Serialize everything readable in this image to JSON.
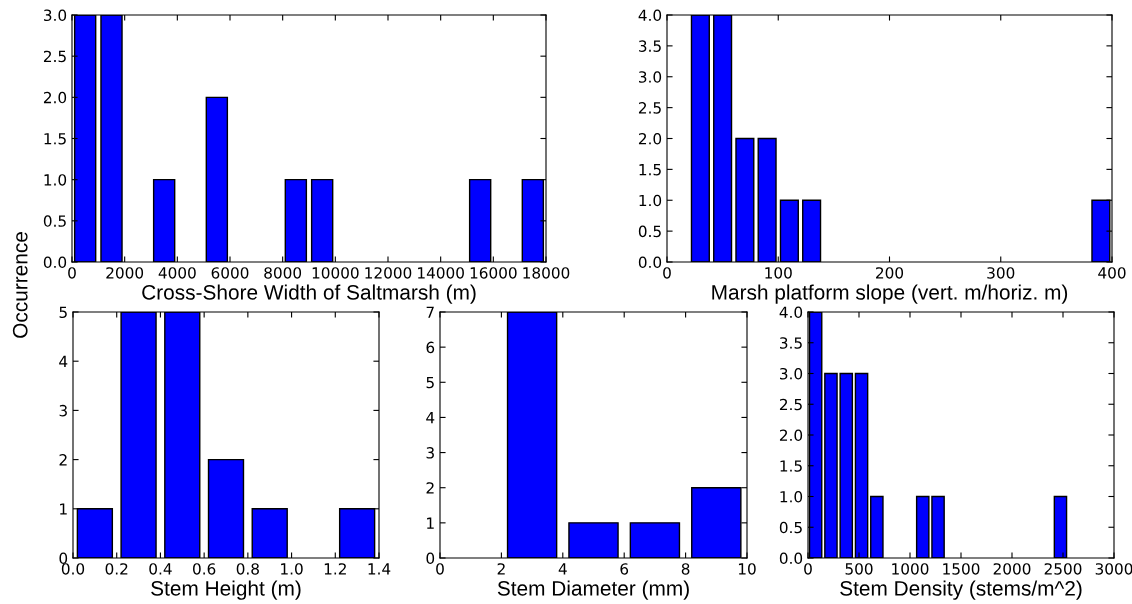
{
  "chart_data": [
    {
      "type": "histogram",
      "ylabel": "Occurrence",
      "xlabel": "Cross-Shore Width of Saltmarsh (m)",
      "color": "#0000ff",
      "bins": [
        0,
        1000,
        2000,
        3000,
        4000,
        5000,
        6000,
        7000,
        8000,
        9000,
        10000,
        11000,
        12000,
        13000,
        14000,
        15000,
        16000,
        17000,
        18000
      ],
      "values": [
        3,
        3,
        0,
        1,
        0,
        2,
        0,
        0,
        1,
        1,
        0,
        0,
        0,
        0,
        0,
        1,
        0,
        1
      ],
      "xlim": [
        0,
        18000
      ],
      "xticks": [
        0,
        2000,
        4000,
        6000,
        8000,
        10000,
        12000,
        14000,
        16000,
        18000
      ],
      "ylim": [
        0,
        3
      ],
      "yticks": [
        {
          "value": 0,
          "label": "0.0"
        },
        {
          "value": 0.5,
          "label": "0.5"
        },
        {
          "value": 1,
          "label": "1.0"
        },
        {
          "value": 1.5,
          "label": "1.5"
        },
        {
          "value": 2,
          "label": "2.0"
        },
        {
          "value": 2.5,
          "label": "2.5"
        },
        {
          "value": 3,
          "label": "3.0"
        }
      ]
    },
    {
      "type": "histogram",
      "xlabel": "Marsh platform slope (vert. m/horiz. m)",
      "color": "#0000ff",
      "bins": [
        0,
        20,
        40,
        60,
        80,
        100,
        120,
        140,
        160,
        180,
        200,
        220,
        240,
        260,
        280,
        300,
        320,
        340,
        360,
        380,
        400
      ],
      "values": [
        0,
        4,
        4,
        2,
        2,
        1,
        1,
        0,
        0,
        0,
        0,
        0,
        0,
        0,
        0,
        0,
        0,
        0,
        0,
        1
      ],
      "xlim": [
        0,
        400
      ],
      "xticks": [
        0,
        100,
        200,
        300,
        400
      ],
      "ylim": [
        0,
        4
      ],
      "yticks": [
        {
          "value": 0,
          "label": "0.0"
        },
        {
          "value": 0.5,
          "label": "0.5"
        },
        {
          "value": 1,
          "label": "1.0"
        },
        {
          "value": 1.5,
          "label": "1.5"
        },
        {
          "value": 2,
          "label": "2.0"
        },
        {
          "value": 2.5,
          "label": "2.5"
        },
        {
          "value": 3,
          "label": "3.0"
        },
        {
          "value": 3.5,
          "label": "3.5"
        },
        {
          "value": 4,
          "label": "4.0"
        }
      ]
    },
    {
      "type": "histogram",
      "xlabel": "Stem Height (m)",
      "color": "#0000ff",
      "bins": [
        0,
        0.2,
        0.4,
        0.6,
        0.8,
        1.0,
        1.2,
        1.4
      ],
      "values": [
        1,
        5,
        5,
        2,
        1,
        0,
        1
      ],
      "xlim": [
        0,
        1.4
      ],
      "xticks": [
        {
          "value": 0,
          "label": "0.0"
        },
        {
          "value": 0.2,
          "label": "0.2"
        },
        {
          "value": 0.4,
          "label": "0.4"
        },
        {
          "value": 0.6,
          "label": "0.6"
        },
        {
          "value": 0.8,
          "label": "0.8"
        },
        {
          "value": 1.0,
          "label": "1.0"
        },
        {
          "value": 1.2,
          "label": "1.2"
        },
        {
          "value": 1.4,
          "label": "1.4"
        }
      ],
      "ylim": [
        0,
        5
      ],
      "yticks": [
        0,
        1,
        2,
        3,
        4,
        5
      ]
    },
    {
      "type": "histogram",
      "xlabel": "Stem Diameter (mm)",
      "color": "#0000ff",
      "bins": [
        0,
        2,
        4,
        6,
        8,
        10
      ],
      "values": [
        0,
        7,
        1,
        1,
        2
      ],
      "xlim": [
        0,
        10
      ],
      "xticks": [
        0,
        2,
        4,
        6,
        8,
        10
      ],
      "ylim": [
        0,
        7
      ],
      "yticks": [
        0,
        1,
        2,
        3,
        4,
        5,
        6,
        7
      ]
    },
    {
      "type": "histogram",
      "xlabel": "Stem Density (stems/m^2)",
      "color": "#0000ff",
      "bins": [
        0,
        150,
        300,
        450,
        600,
        750,
        900,
        1050,
        1200,
        1350,
        1500,
        1650,
        1800,
        1950,
        2100,
        2250,
        2400,
        2550,
        2700,
        2850,
        3000
      ],
      "values": [
        4,
        3,
        3,
        3,
        1,
        0,
        0,
        1,
        1,
        0,
        0,
        0,
        0,
        0,
        0,
        0,
        1,
        0,
        0,
        0
      ],
      "xlim": [
        0,
        3000
      ],
      "xticks": [
        0,
        500,
        1000,
        1500,
        2000,
        2500,
        3000
      ],
      "ylim": [
        0,
        4
      ],
      "yticks": [
        {
          "value": 0,
          "label": "0.0"
        },
        {
          "value": 0.5,
          "label": "0.5"
        },
        {
          "value": 1,
          "label": "1.0"
        },
        {
          "value": 1.5,
          "label": "1.5"
        },
        {
          "value": 2,
          "label": "2.0"
        },
        {
          "value": 2.5,
          "label": "2.5"
        },
        {
          "value": 3,
          "label": "3.0"
        },
        {
          "value": 3.5,
          "label": "3.5"
        },
        {
          "value": 4,
          "label": "4.0"
        }
      ]
    }
  ]
}
